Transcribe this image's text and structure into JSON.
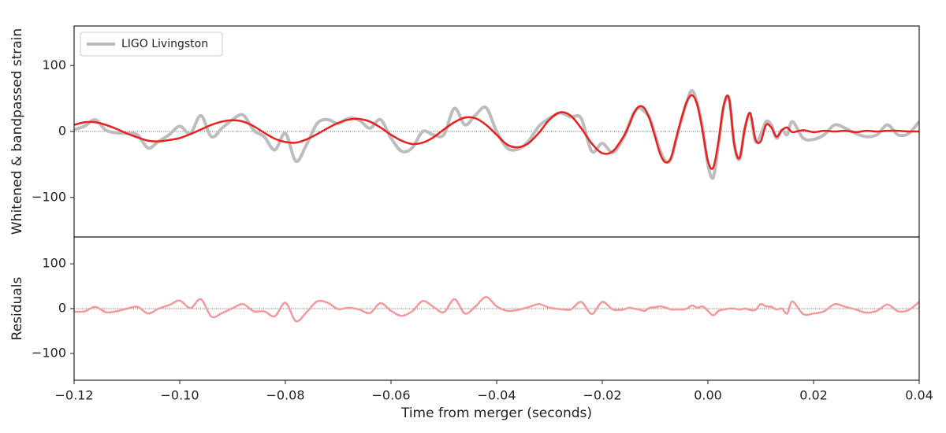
{
  "chart_data": [
    {
      "type": "line",
      "ylabel": "Whitened & bandpassed strain",
      "legend": "upper left",
      "xlim": [
        -0.12,
        0.04
      ],
      "ylim": [
        -160,
        160
      ],
      "yticks": [
        {
          "value": -100,
          "label": "−100"
        },
        0,
        100
      ],
      "zero_line": true,
      "x": [
        -0.12,
        -0.118,
        -0.116,
        -0.114,
        -0.112,
        -0.11,
        -0.108,
        -0.106,
        -0.104,
        -0.102,
        -0.1,
        -0.098,
        -0.096,
        -0.094,
        -0.092,
        -0.09,
        -0.088,
        -0.086,
        -0.084,
        -0.082,
        -0.08,
        -0.078,
        -0.076,
        -0.074,
        -0.072,
        -0.07,
        -0.068,
        -0.066,
        -0.064,
        -0.062,
        -0.06,
        -0.058,
        -0.056,
        -0.054,
        -0.052,
        -0.05,
        -0.048,
        -0.046,
        -0.044,
        -0.042,
        -0.04,
        -0.038,
        -0.036,
        -0.034,
        -0.032,
        -0.03,
        -0.028,
        -0.026,
        -0.024,
        -0.022,
        -0.02,
        -0.018,
        -0.016,
        -0.015,
        -0.014,
        -0.013,
        -0.012,
        -0.011,
        -0.01,
        -0.009,
        -0.008,
        -0.007,
        -0.006,
        -0.005,
        -0.004,
        -0.003,
        -0.002,
        -0.001,
        0.0,
        0.001,
        0.002,
        0.003,
        0.004,
        0.005,
        0.006,
        0.007,
        0.008,
        0.009,
        0.01,
        0.011,
        0.012,
        0.013,
        0.014,
        0.015,
        0.016,
        0.018,
        0.02,
        0.022,
        0.024,
        0.026,
        0.028,
        0.03,
        0.032,
        0.034,
        0.036,
        0.038,
        0.04
      ],
      "series": [
        {
          "name": "LIGO Livingston",
          "color": "#bdbdbd",
          "width": 4,
          "values": [
            3,
            8,
            18,
            2,
            -2,
            -3,
            -5,
            -25,
            -15,
            -5,
            8,
            -3,
            24,
            -8,
            5,
            18,
            25,
            2,
            -8,
            -28,
            -3,
            -45,
            -20,
            12,
            18,
            12,
            20,
            17,
            5,
            18,
            -10,
            -30,
            -25,
            0,
            -5,
            -5,
            35,
            10,
            25,
            36,
            0,
            -25,
            -27,
            -15,
            8,
            20,
            28,
            22,
            20,
            -30,
            -18,
            -32,
            -10,
            10,
            28,
            36,
            30,
            20,
            -5,
            -30,
            -45,
            -42,
            -12,
            18,
            45,
            62,
            42,
            5,
            -50,
            -70,
            -20,
            38,
            50,
            -20,
            -42,
            5,
            25,
            -15,
            -5,
            15,
            10,
            -10,
            2,
            -5,
            15,
            -10,
            -12,
            -5,
            10,
            5,
            -3,
            -8,
            -5,
            10,
            -5,
            -3,
            15
          ]
        },
        {
          "color": "#e8201e",
          "width": 2.5,
          "values": [
            10,
            14,
            14,
            10,
            4,
            -3,
            -9,
            -14,
            -15,
            -13,
            -10,
            -4,
            3,
            10,
            15,
            17,
            15,
            8,
            -2,
            -11,
            -16,
            -17,
            -12,
            -4,
            5,
            13,
            18,
            19,
            15,
            6,
            -5,
            -14,
            -19,
            -17,
            -9,
            3,
            14,
            21,
            20,
            10,
            -5,
            -20,
            -24,
            -18,
            -2,
            18,
            29,
            24,
            5,
            -18,
            -33,
            -30,
            -8,
            8,
            28,
            38,
            35,
            18,
            -8,
            -35,
            -47,
            -40,
            -10,
            20,
            45,
            55,
            40,
            0,
            -45,
            -55,
            -15,
            40,
            50,
            -20,
            -40,
            5,
            28,
            -12,
            -15,
            10,
            6,
            -8,
            2,
            6,
            -1,
            2,
            -1,
            1,
            0,
            1,
            -1,
            1,
            0,
            1,
            1,
            0,
            0
          ]
        }
      ]
    },
    {
      "type": "line",
      "ylabel": "Residuals",
      "xlabel": "Time from merger (seconds)",
      "xlim": [
        -0.12,
        0.04
      ],
      "ylim": [
        -160,
        160
      ],
      "xticks": [
        {
          "value": -0.12,
          "label": "−0.12"
        },
        {
          "value": -0.1,
          "label": "−0.10"
        },
        {
          "value": -0.08,
          "label": "−0.08"
        },
        {
          "value": -0.06,
          "label": "−0.06"
        },
        {
          "value": -0.04,
          "label": "−0.04"
        },
        {
          "value": -0.02,
          "label": "−0.02"
        },
        {
          "value": 0,
          "label": "0.00"
        },
        {
          "value": 0.02,
          "label": "0.02"
        },
        {
          "value": 0.04,
          "label": "0.04"
        }
      ],
      "yticks": [
        {
          "value": -100,
          "label": "−100"
        },
        0,
        100
      ],
      "zero_line": true,
      "x": [
        -0.12,
        -0.118,
        -0.116,
        -0.114,
        -0.112,
        -0.11,
        -0.108,
        -0.106,
        -0.104,
        -0.102,
        -0.1,
        -0.098,
        -0.096,
        -0.094,
        -0.092,
        -0.09,
        -0.088,
        -0.086,
        -0.084,
        -0.082,
        -0.08,
        -0.078,
        -0.076,
        -0.074,
        -0.072,
        -0.07,
        -0.068,
        -0.066,
        -0.064,
        -0.062,
        -0.06,
        -0.058,
        -0.056,
        -0.054,
        -0.052,
        -0.05,
        -0.048,
        -0.046,
        -0.044,
        -0.042,
        -0.04,
        -0.038,
        -0.036,
        -0.034,
        -0.032,
        -0.03,
        -0.028,
        -0.026,
        -0.024,
        -0.022,
        -0.02,
        -0.018,
        -0.016,
        -0.015,
        -0.014,
        -0.013,
        -0.012,
        -0.011,
        -0.01,
        -0.009,
        -0.008,
        -0.007,
        -0.006,
        -0.005,
        -0.004,
        -0.003,
        -0.002,
        -0.001,
        0.0,
        0.001,
        0.002,
        0.003,
        0.004,
        0.005,
        0.006,
        0.007,
        0.008,
        0.009,
        0.01,
        0.011,
        0.012,
        0.013,
        0.014,
        0.015,
        0.016,
        0.018,
        0.02,
        0.022,
        0.024,
        0.026,
        0.028,
        0.03,
        0.032,
        0.034,
        0.036,
        0.038,
        0.04
      ],
      "series": [
        {
          "color": "#f4999b",
          "width": 2.5,
          "values": [
            -7,
            -6,
            4,
            -8,
            -6,
            0,
            4,
            -11,
            0,
            8,
            18,
            1,
            21,
            -18,
            -10,
            1,
            10,
            -6,
            -6,
            -17,
            13,
            -28,
            -8,
            16,
            13,
            -1,
            2,
            -2,
            -10,
            12,
            -5,
            -16,
            -6,
            17,
            4,
            -8,
            21,
            -11,
            5,
            26,
            5,
            -5,
            -3,
            3,
            10,
            2,
            -1,
            -2,
            15,
            -12,
            15,
            -2,
            -2,
            2,
            0,
            -2,
            -5,
            2,
            3,
            5,
            2,
            -2,
            -2,
            -2,
            0,
            7,
            2,
            5,
            -5,
            -15,
            -5,
            -2,
            0,
            0,
            -2,
            0,
            -3,
            -3,
            10,
            5,
            4,
            -2,
            0,
            -11,
            16,
            -12,
            -11,
            -6,
            10,
            4,
            -2,
            -9,
            -5,
            9,
            -6,
            -3,
            15
          ]
        }
      ]
    }
  ]
}
